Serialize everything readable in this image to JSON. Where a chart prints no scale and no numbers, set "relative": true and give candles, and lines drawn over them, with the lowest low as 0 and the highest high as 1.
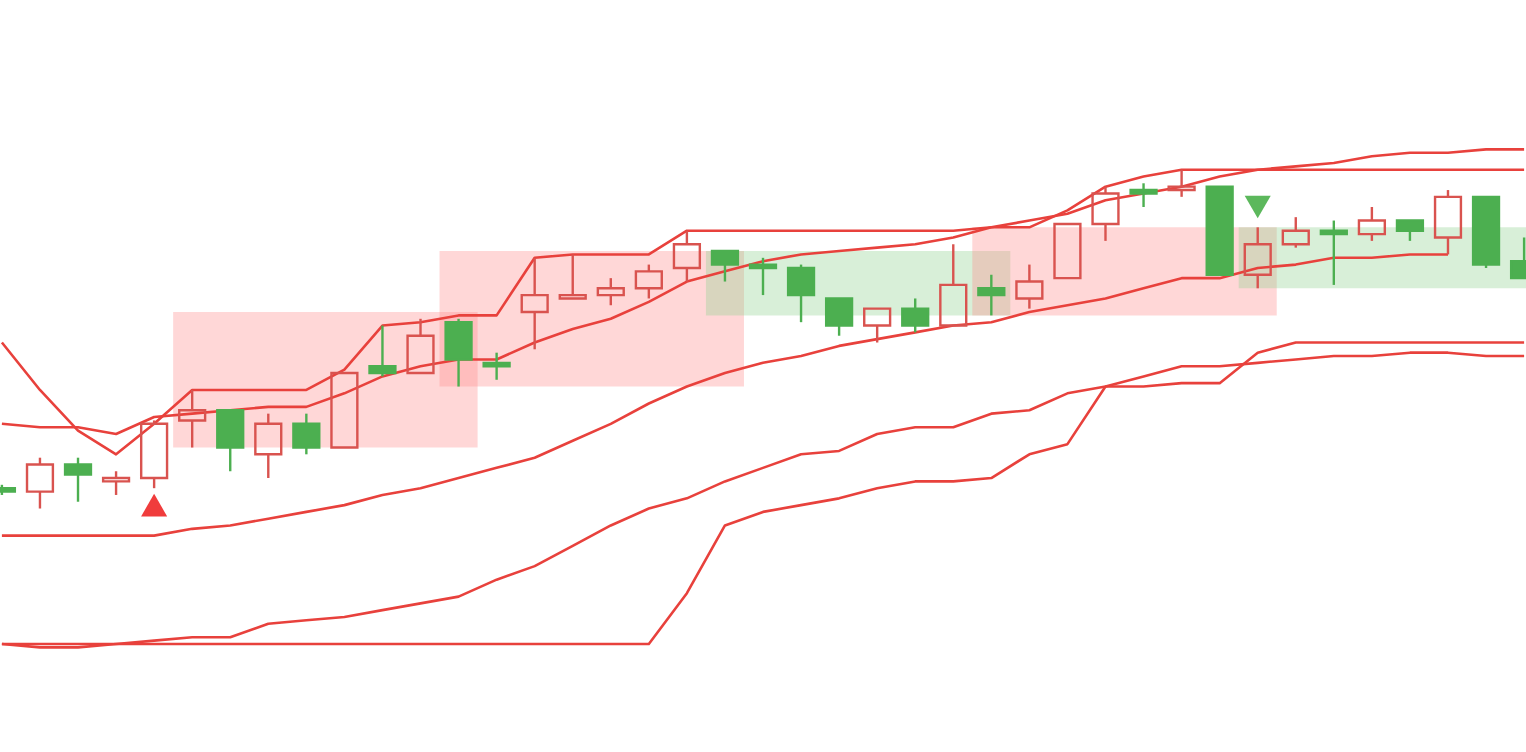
{
  "chart_data": {
    "type": "candlestick",
    "relative": true,
    "categories": [
      null,
      null,
      null,
      null,
      null,
      null,
      null,
      null,
      null,
      null,
      null,
      null,
      null,
      null,
      null,
      null,
      null,
      null,
      null,
      null,
      null,
      null,
      null,
      null,
      null,
      null,
      null,
      null,
      null,
      null,
      null,
      null,
      null,
      null,
      null,
      null,
      null,
      null,
      null,
      null,
      null
    ],
    "ohlc": [
      [
        0.06,
        0.07,
        0.04,
        0.05
      ],
      [
        0.05,
        0.15,
        0,
        0.13
      ],
      [
        0.13,
        0.15,
        0.02,
        0.1
      ],
      [
        0.08,
        0.11,
        0.04,
        0.09
      ],
      [
        0.09,
        0.26,
        0.06,
        0.25
      ],
      [
        0.26,
        0.35,
        0.18,
        0.29
      ],
      [
        0.29,
        0.29,
        0.11,
        0.18
      ],
      [
        0.16,
        0.28,
        0.09,
        0.25
      ],
      [
        0.25,
        0.28,
        0.16,
        0.18
      ],
      [
        0.18,
        0.4,
        0.18,
        0.4
      ],
      [
        0.42,
        0.54,
        0.39,
        0.4
      ],
      [
        0.4,
        0.56,
        0.4,
        0.51
      ],
      [
        0.55,
        0.56,
        0.36,
        0.44
      ],
      [
        0.43,
        0.46,
        0.38,
        0.42
      ],
      [
        0.58,
        0.74,
        0.47,
        0.63
      ],
      [
        0.62,
        0.75,
        0.62,
        0.63
      ],
      [
        0.63,
        0.68,
        0.6,
        0.65
      ],
      [
        0.65,
        0.72,
        0.62,
        0.7
      ],
      [
        0.71,
        0.82,
        0.67,
        0.78
      ],
      [
        0.76,
        0.76,
        0.67,
        0.72
      ],
      [
        0.72,
        0.74,
        0.63,
        0.71
      ],
      [
        0.71,
        0.72,
        0.55,
        0.63
      ],
      [
        0.62,
        0.62,
        0.51,
        0.54
      ],
      [
        0.54,
        0.59,
        0.49,
        0.59
      ],
      [
        0.59,
        0.62,
        0.52,
        0.54
      ],
      [
        0.54,
        0.78,
        0.54,
        0.66
      ],
      [
        0.65,
        0.69,
        0.57,
        0.63
      ],
      [
        0.62,
        0.72,
        0.59,
        0.67
      ],
      [
        0.68,
        0.84,
        0.68,
        0.84
      ],
      [
        0.84,
        0.95,
        0.79,
        0.93
      ],
      [
        0.94,
        0.96,
        0.89,
        0.93
      ],
      [
        0.94,
        1,
        0.92,
        0.95
      ],
      [
        0.95,
        0.95,
        0.69,
        0.69
      ],
      [
        0.69,
        0.83,
        0.65,
        0.78
      ],
      [
        0.78,
        0.86,
        0.77,
        0.82
      ],
      [
        0.82,
        0.85,
        0.66,
        0.81
      ],
      [
        0.81,
        0.89,
        0.79,
        0.85
      ],
      [
        0.85,
        0.85,
        0.79,
        0.82
      ],
      [
        0.8,
        0.94,
        0.75,
        0.92
      ],
      [
        0.92,
        0.92,
        0.71,
        0.72
      ],
      [
        0.73,
        0.8,
        0.68,
        0.68
      ]
    ],
    "colors": [
      "#4caf50",
      "#d9534f",
      "#4caf50",
      "#d9534f",
      "#d9534f",
      "#d9534f",
      "#4caf50",
      "#d9534f",
      "#4caf50",
      "#d9534f",
      "#4caf50",
      "#d9534f",
      "#4caf50",
      "#4caf50",
      "#d9534f",
      "#d9534f",
      "#d9534f",
      "#d9534f",
      "#d9534f",
      "#4caf50",
      "#4caf50",
      "#4caf50",
      "#4caf50",
      "#d9534f",
      "#4caf50",
      "#d9534f",
      "#4caf50",
      "#d9534f",
      "#d9534f",
      "#d9534f",
      "#4caf50",
      "#d9534f",
      "#4caf50",
      "#d9534f",
      "#d9534f",
      "#4caf50",
      "#d9534f",
      "#4caf50",
      "#d9534f",
      "#4caf50",
      "#4caf50"
    ],
    "series": [
      {
        "type": "line",
        "color": "#e8413c",
        "values": [
          0.49,
          0.35,
          0.23,
          0.16,
          0.25,
          0.35,
          0.35,
          0.35,
          0.35,
          0.41,
          0.54,
          0.55,
          0.57,
          0.57,
          0.74,
          0.75,
          0.75,
          0.75,
          0.82,
          0.82,
          0.82,
          0.82,
          0.82,
          0.82,
          0.82,
          0.82,
          0.83,
          0.83,
          0.88,
          0.95,
          0.98,
          1,
          1,
          1,
          1,
          1,
          1,
          1,
          1,
          1,
          1
        ]
      },
      {
        "type": "line",
        "color": "#e8413c",
        "values": [
          0.25,
          0.24,
          0.24,
          0.22,
          0.27,
          0.28,
          0.29,
          0.3,
          0.3,
          0.34,
          0.39,
          0.42,
          0.44,
          0.44,
          0.49,
          0.53,
          0.56,
          0.61,
          0.67,
          0.7,
          0.73,
          0.75,
          0.76,
          0.77,
          0.78,
          0.8,
          0.83,
          0.85,
          0.87,
          0.91,
          0.93,
          0.95,
          0.98,
          1,
          1.01,
          1.02,
          1.04,
          1.05,
          1.05,
          1.06,
          1.06
        ]
      },
      {
        "type": "line",
        "color": "#e8413c",
        "values": [
          -0.08,
          -0.08,
          -0.08,
          -0.08,
          -0.08,
          -0.06,
          -0.05,
          -0.03,
          -0.01,
          0.01,
          0.04,
          0.06,
          0.09,
          0.12,
          0.15,
          0.2,
          0.25,
          0.31,
          0.36,
          0.4,
          0.43,
          0.45,
          0.48,
          0.5,
          0.52,
          0.54,
          0.55,
          0.58,
          0.6,
          0.62,
          0.65,
          0.68,
          0.68,
          0.71,
          0.72,
          0.74,
          0.74,
          0.75,
          0.75,
          null,
          null
        ]
      },
      {
        "type": "line",
        "color": "#e8413c",
        "values": [
          -0.4,
          -0.4,
          -0.4,
          -0.4,
          -0.39,
          -0.38,
          -0.38,
          -0.34,
          -0.33,
          -0.32,
          -0.3,
          -0.28,
          -0.26,
          -0.21,
          -0.17,
          -0.11,
          -0.05,
          0,
          0.03,
          0.08,
          0.12,
          0.16,
          0.17,
          0.22,
          0.24,
          0.24,
          0.28,
          0.29,
          0.34,
          0.36,
          0.39,
          0.42,
          0.42,
          0.43,
          0.44,
          0.45,
          0.45,
          0.46,
          0.46,
          0.45,
          0.45
        ]
      },
      {
        "type": "line",
        "color": "#e8413c",
        "values": [
          -0.4,
          -0.41,
          -0.41,
          -0.4,
          -0.4,
          -0.4,
          -0.4,
          -0.4,
          -0.4,
          -0.4,
          -0.4,
          -0.4,
          -0.4,
          -0.4,
          -0.4,
          -0.4,
          -0.4,
          -0.4,
          -0.25,
          -0.05,
          -0.01,
          0.01,
          0.03,
          0.06,
          0.08,
          0.08,
          0.09,
          0.16,
          0.19,
          0.36,
          0.36,
          0.37,
          0.37,
          0.46,
          0.49,
          0.49,
          0.49,
          0.49,
          0.49,
          0.49,
          0.49
        ]
      },
      {
        "type": "scatter",
        "marker": "triangle",
        "color": "#f03c3c",
        "values": [
          null,
          null,
          null,
          null,
          0.01,
          null,
          null,
          null,
          null,
          null,
          null,
          null,
          null,
          null,
          null,
          null,
          null,
          null,
          null,
          null,
          null,
          null,
          null,
          null,
          null,
          null,
          null,
          null,
          null,
          null,
          null,
          null,
          null,
          null,
          null,
          null,
          null,
          null,
          null,
          null,
          null
        ]
      },
      {
        "type": "scatter",
        "marker": "triangle-down",
        "color": "#5cb85c",
        "values": [
          null,
          null,
          null,
          null,
          null,
          null,
          null,
          null,
          null,
          null,
          null,
          null,
          null,
          null,
          null,
          null,
          null,
          null,
          null,
          null,
          null,
          null,
          null,
          null,
          null,
          null,
          null,
          null,
          null,
          null,
          null,
          null,
          null,
          0.89,
          null,
          null,
          null,
          null,
          null,
          null,
          null
        ]
      }
    ]
  }
}
